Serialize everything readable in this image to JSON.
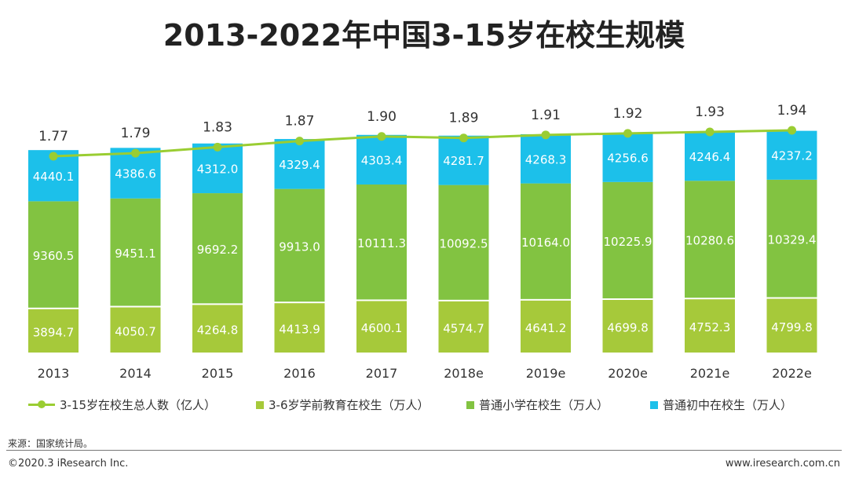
{
  "title": "2013-2022年中国3-15岁在校生规模",
  "colors": {
    "line": "#9acd32",
    "preschool": "#a6c93a",
    "primary": "#82c341",
    "junior": "#1cc0ea",
    "bar_text": "#ffffff",
    "axis_text": "#333333"
  },
  "chart_data": {
    "type": "bar",
    "stacked": true,
    "categories": [
      "2013",
      "2014",
      "2015",
      "2016",
      "2017",
      "2018e",
      "2019e",
      "2020e",
      "2021e",
      "2022e"
    ],
    "series": [
      {
        "name": "3-6岁学前教育在校生（万人）",
        "key": "preschool",
        "values": [
          3894.7,
          4050.7,
          4264.8,
          4413.9,
          4600.1,
          4574.7,
          4641.2,
          4699.8,
          4752.3,
          4799.8
        ],
        "labels": [
          "3894.7",
          "4050.7",
          "4264.8",
          "4413.9",
          "4600.1",
          "4574.7",
          "4641.2",
          "4699.8",
          "4752.3",
          "4799.8"
        ]
      },
      {
        "name": "普通小学在校生（万人）",
        "key": "primary",
        "values": [
          9360.5,
          9451.1,
          9692.2,
          9913.0,
          10111.3,
          10092.5,
          10164.0,
          10225.9,
          10280.6,
          10329.4
        ],
        "labels": [
          "9360.5",
          "9451.1",
          "9692.2",
          "9913.0",
          "10111.3",
          "10092.5",
          "10164.0",
          "10225.9",
          "10280.6",
          "10329.4"
        ]
      },
      {
        "name": "普通初中在校生（万人）",
        "key": "junior",
        "values": [
          4440.1,
          4386.6,
          4312.0,
          4329.4,
          4303.4,
          4281.7,
          4268.3,
          4256.6,
          4246.4,
          4237.2
        ],
        "labels": [
          "4440.1",
          "4386.6",
          "4312.0",
          "4329.4",
          "4303.4",
          "4281.7",
          "4268.3",
          "4256.6",
          "4246.4",
          "4237.2"
        ]
      }
    ],
    "line_series": {
      "name": "3-15岁在校生总人数（亿人）",
      "values": [
        1.77,
        1.79,
        1.83,
        1.87,
        1.9,
        1.89,
        1.91,
        1.92,
        1.93,
        1.94
      ],
      "labels": [
        "1.77",
        "1.79",
        "1.83",
        "1.87",
        "1.90",
        "1.89",
        "1.91",
        "1.92",
        "1.93",
        "1.94"
      ]
    },
    "ylim_bars": [
      0,
      20000
    ],
    "ylim_line": [
      1.4,
      2.0
    ],
    "xlabel": "",
    "ylabel": "",
    "legend": "bottom"
  },
  "legend": {
    "line_label": "3-15岁在校生总人数（亿人）",
    "preschool_label": "3-6岁学前教育在校生（万人）",
    "primary_label": "普通小学在校生（万人）",
    "junior_label": "普通初中在校生（万人）"
  },
  "footer": {
    "source": "来源：国家统计局。",
    "copyright": "©2020.3 iResearch Inc.",
    "website": "www.iresearch.com.cn"
  }
}
